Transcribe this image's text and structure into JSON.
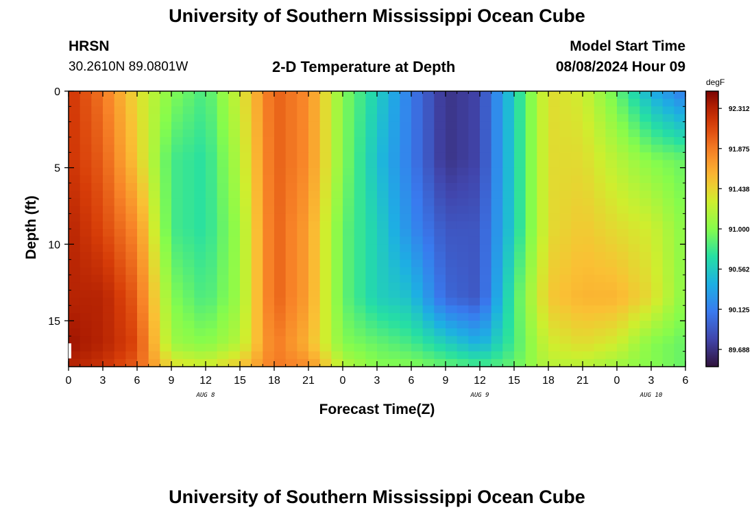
{
  "header": {
    "title": "University of Southern Mississippi Ocean Cube",
    "station": "HRSN",
    "coords": "30.2610N  89.0801W",
    "chart_title": "2-D Temperature at Depth",
    "start_label": "Model Start Time",
    "start_value": "08/08/2024 Hour 09",
    "footer_title": "University of Southern Mississippi Ocean Cube"
  },
  "chart_data": {
    "type": "heatmap",
    "title": "2-D Temperature at Depth",
    "xlabel": "Forecast Time(Z)",
    "ylabel": "Depth (ft)",
    "units": "degF",
    "x_tick_labels": [
      "0",
      "3",
      "6",
      "9",
      "12",
      "15",
      "18",
      "21",
      "0",
      "3",
      "6",
      "9",
      "12",
      "15",
      "18",
      "21",
      "0",
      "3",
      "6"
    ],
    "date_labels": [
      {
        "label": "AUG 8",
        "hour": 12
      },
      {
        "label": "AUG 9",
        "hour": 36
      },
      {
        "label": "AUG 10",
        "hour": 51
      }
    ],
    "xlim": [
      0,
      54
    ],
    "y_ticks": [
      0,
      5,
      10,
      15
    ],
    "ylim": [
      0,
      18
    ],
    "colorbar_ticks": [
      "92.312",
      "91.875",
      "91.438",
      "91.000",
      "90.562",
      "90.125",
      "89.688"
    ],
    "clim": [
      89.5,
      92.5
    ],
    "hours": [
      0,
      3,
      6,
      9,
      12,
      15,
      18,
      21,
      24,
      27,
      30,
      33,
      36,
      39,
      42,
      45,
      48,
      51,
      54
    ],
    "depths": [
      0,
      4.5,
      9,
      13.5,
      16.5,
      18
    ],
    "temperature_degF": [
      [
        92.2,
        91.9,
        91.4,
        91.0,
        90.8,
        91.3,
        92.0,
        91.8,
        91.0,
        90.6,
        90.1,
        89.7,
        89.8,
        90.6,
        91.4,
        91.3,
        90.9,
        90.4,
        90.1
      ],
      [
        92.2,
        92.0,
        91.5,
        90.8,
        90.7,
        91.2,
        92.0,
        91.8,
        91.0,
        90.5,
        90.1,
        89.7,
        89.8,
        90.6,
        91.4,
        91.4,
        91.2,
        91.0,
        90.9
      ],
      [
        92.3,
        92.1,
        91.8,
        90.8,
        90.7,
        91.1,
        92.0,
        91.7,
        90.9,
        90.6,
        90.2,
        89.9,
        89.9,
        90.6,
        91.4,
        91.5,
        91.4,
        91.3,
        91.0
      ],
      [
        92.3,
        92.3,
        92.0,
        91.0,
        90.8,
        91.1,
        92.0,
        91.7,
        90.9,
        90.6,
        90.5,
        90.0,
        89.9,
        90.8,
        91.5,
        91.6,
        91.6,
        91.4,
        91.0
      ],
      [
        92.4,
        92.3,
        92.1,
        91.1,
        91.0,
        91.2,
        91.9,
        91.6,
        91.0,
        90.9,
        90.8,
        90.6,
        90.4,
        90.8,
        91.3,
        91.4,
        91.3,
        91.0,
        90.9
      ],
      [
        92.3,
        92.2,
        92.0,
        91.4,
        91.3,
        91.5,
        91.9,
        91.8,
        91.2,
        91.0,
        91.0,
        90.9,
        90.8,
        90.9,
        91.2,
        91.2,
        91.1,
        91.0,
        90.9
      ]
    ]
  }
}
